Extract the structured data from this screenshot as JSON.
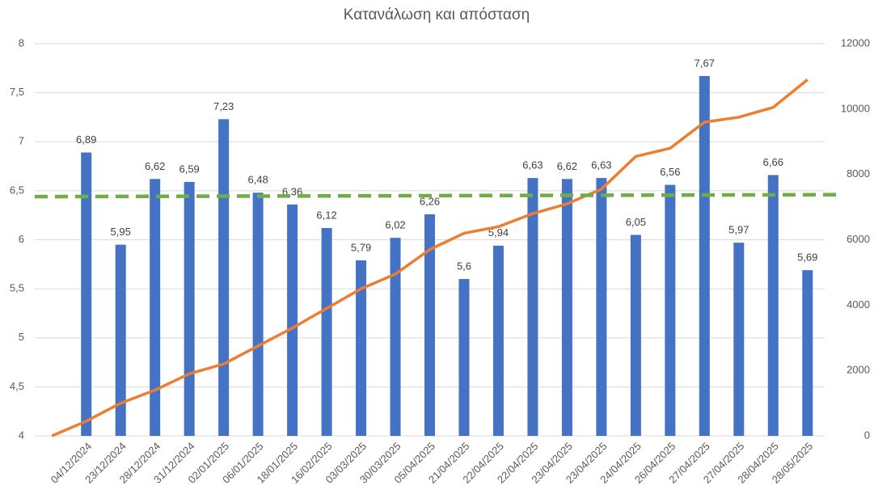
{
  "chart_data": {
    "type": "bar_line",
    "title": "Κατανάλωση και απόσταση",
    "categories": [
      null,
      "04/12/2024",
      "23/12/2024",
      "28/12/2024",
      "31/12/2024",
      "02/01/2025",
      "06/01/2025",
      "18/01/2025",
      "16/02/2025",
      "03/03/2025",
      "30/03/2025",
      "05/04/2025",
      "21/04/2025",
      "22/04/2025",
      "22/04/2025",
      "23/04/2025",
      "23/04/2025",
      "24/04/2025",
      "26/04/2025",
      "27/04/2025",
      "27/04/2025",
      "28/04/2025",
      "28/05/2025"
    ],
    "series": [
      {
        "type": "bar",
        "color": "#4472c4",
        "values": [
          null,
          6.89,
          5.95,
          6.62,
          6.59,
          7.23,
          6.48,
          6.36,
          6.12,
          5.79,
          6.02,
          6.26,
          5.6,
          5.94,
          6.63,
          6.62,
          6.63,
          6.05,
          6.56,
          7.67,
          5.97,
          6.66,
          5.69
        ],
        "value_labels": [
          null,
          "6,89",
          "5,95",
          "6,62",
          "6,59",
          "7,23",
          "6,48",
          "6,36",
          "6,12",
          "5,79",
          "6,02",
          "6,26",
          "5,6",
          "5,94",
          "6,63",
          "6,62",
          "6,63",
          "6,05",
          "6,56",
          "7,67",
          "5,97",
          "6,66",
          "5,69"
        ]
      },
      {
        "type": "line",
        "axis": "y2",
        "color": "#ed7d31",
        "values": [
          0,
          450,
          1000,
          1400,
          1900,
          2200,
          2750,
          3300,
          3900,
          4500,
          4950,
          5700,
          6200,
          6400,
          6800,
          7100,
          7550,
          8550,
          8800,
          9600,
          9750,
          10050,
          10900
        ]
      }
    ],
    "trendline": {
      "color": "#70ad47",
      "values": [
        6.44,
        6.46
      ]
    },
    "ylim": [
      4,
      8
    ],
    "yticks": [
      4,
      {
        "value": 4.5,
        "label": "4,5"
      },
      5,
      {
        "value": 5.5,
        "label": "5,5"
      },
      6,
      {
        "value": 6.5,
        "label": "6,5"
      },
      7,
      {
        "value": 7.5,
        "label": "7,5"
      },
      8
    ],
    "y2lim": [
      0,
      12000
    ],
    "y2ticks": [
      0,
      2000,
      4000,
      6000,
      8000,
      10000,
      12000
    ],
    "grid": true
  }
}
